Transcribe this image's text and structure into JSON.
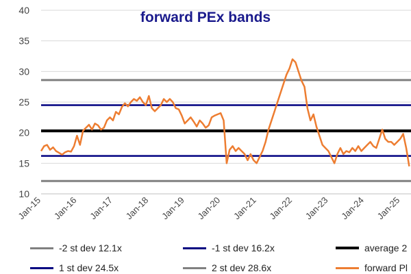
{
  "chart_data": {
    "type": "line",
    "title": "forward PEx bands",
    "xlabel": "",
    "ylabel": "",
    "ylim": [
      10,
      40
    ],
    "yticks": [
      "10",
      "15",
      "20",
      "25",
      "30",
      "35",
      "40"
    ],
    "xticks": [
      "Jan-15",
      "Jan-16",
      "Jan-17",
      "Jan-18",
      "Jan-19",
      "Jan-20",
      "Jan-21",
      "Jan-22",
      "Jan-23",
      "Jan-24",
      "Jan-25"
    ],
    "grid": true,
    "legend_position": "bottom",
    "bands": [
      {
        "name": "-2 st dev 12.1x",
        "value": 12.1,
        "color": "#808080",
        "width": 3
      },
      {
        "name": "-1 st dev 16.2x",
        "value": 16.2,
        "color": "#000080",
        "width": 2.5
      },
      {
        "name": "average 2",
        "value": 20.3,
        "color": "#000000",
        "width": 4
      },
      {
        "name": "1 st dev 24.5x",
        "value": 24.5,
        "color": "#000080",
        "width": 2.5
      },
      {
        "name": "2 st dev 28.6x",
        "value": 28.6,
        "color": "#808080",
        "width": 3
      }
    ],
    "series": [
      {
        "name": "forward Pl",
        "color": "#ed7d31",
        "points": [
          [
            "2015-01",
            17.0
          ],
          [
            "2015-02",
            17.8
          ],
          [
            "2015-03",
            18.0
          ],
          [
            "2015-04",
            17.2
          ],
          [
            "2015-05",
            17.6
          ],
          [
            "2015-06",
            17.0
          ],
          [
            "2015-07",
            16.7
          ],
          [
            "2015-08",
            16.4
          ],
          [
            "2015-09",
            16.8
          ],
          [
            "2015-10",
            17.0
          ],
          [
            "2015-11",
            16.9
          ],
          [
            "2015-12",
            17.8
          ],
          [
            "2016-01",
            19.5
          ],
          [
            "2016-02",
            18.0
          ],
          [
            "2016-03",
            20.3
          ],
          [
            "2016-04",
            20.8
          ],
          [
            "2016-05",
            21.3
          ],
          [
            "2016-06",
            20.5
          ],
          [
            "2016-07",
            21.5
          ],
          [
            "2016-08",
            21.2
          ],
          [
            "2016-09",
            20.5
          ],
          [
            "2016-10",
            20.8
          ],
          [
            "2016-11",
            22.0
          ],
          [
            "2016-12",
            22.5
          ],
          [
            "2017-01",
            22.0
          ],
          [
            "2017-02",
            23.4
          ],
          [
            "2017-03",
            23.0
          ],
          [
            "2017-04",
            24.2
          ],
          [
            "2017-05",
            24.8
          ],
          [
            "2017-06",
            24.3
          ],
          [
            "2017-07",
            25.0
          ],
          [
            "2017-08",
            25.5
          ],
          [
            "2017-09",
            25.2
          ],
          [
            "2017-10",
            25.8
          ],
          [
            "2017-11",
            25.0
          ],
          [
            "2017-12",
            24.5
          ],
          [
            "2018-01",
            26.0
          ],
          [
            "2018-02",
            24.0
          ],
          [
            "2018-03",
            23.5
          ],
          [
            "2018-04",
            24.0
          ],
          [
            "2018-05",
            24.5
          ],
          [
            "2018-06",
            25.5
          ],
          [
            "2018-07",
            25.0
          ],
          [
            "2018-08",
            25.5
          ],
          [
            "2018-09",
            25.0
          ],
          [
            "2018-10",
            24.0
          ],
          [
            "2018-11",
            23.8
          ],
          [
            "2018-12",
            22.8
          ],
          [
            "2019-01",
            21.5
          ],
          [
            "2019-02",
            22.0
          ],
          [
            "2019-03",
            22.5
          ],
          [
            "2019-04",
            21.8
          ],
          [
            "2019-05",
            21.0
          ],
          [
            "2019-06",
            22.0
          ],
          [
            "2019-07",
            21.5
          ],
          [
            "2019-08",
            20.8
          ],
          [
            "2019-09",
            21.2
          ],
          [
            "2019-10",
            22.5
          ],
          [
            "2019-11",
            22.8
          ],
          [
            "2019-12",
            23.0
          ],
          [
            "2020-01",
            23.2
          ],
          [
            "2020-02",
            22.0
          ],
          [
            "2020-03",
            15.0
          ],
          [
            "2020-04",
            17.2
          ],
          [
            "2020-05",
            17.8
          ],
          [
            "2020-06",
            17.0
          ],
          [
            "2020-07",
            17.5
          ],
          [
            "2020-08",
            17.0
          ],
          [
            "2020-09",
            16.5
          ],
          [
            "2020-10",
            15.5
          ],
          [
            "2020-11",
            16.5
          ],
          [
            "2020-12",
            15.5
          ],
          [
            "2021-01",
            15.0
          ],
          [
            "2021-02",
            16.0
          ],
          [
            "2021-03",
            17.0
          ],
          [
            "2021-04",
            18.5
          ],
          [
            "2021-05",
            20.5
          ],
          [
            "2021-06",
            22.0
          ],
          [
            "2021-07",
            23.5
          ],
          [
            "2021-08",
            25.0
          ],
          [
            "2021-09",
            26.5
          ],
          [
            "2021-10",
            28.0
          ],
          [
            "2021-11",
            29.5
          ],
          [
            "2021-12",
            30.5
          ],
          [
            "2022-01",
            32.0
          ],
          [
            "2022-02",
            31.5
          ],
          [
            "2022-03",
            30.0
          ],
          [
            "2022-04",
            28.5
          ],
          [
            "2022-05",
            27.5
          ],
          [
            "2022-06",
            24.0
          ],
          [
            "2022-07",
            22.0
          ],
          [
            "2022-08",
            23.0
          ],
          [
            "2022-09",
            21.0
          ],
          [
            "2022-10",
            19.5
          ],
          [
            "2022-11",
            18.0
          ],
          [
            "2022-12",
            17.5
          ],
          [
            "2023-01",
            17.0
          ],
          [
            "2023-02",
            16.0
          ],
          [
            "2023-03",
            15.0
          ],
          [
            "2023-04",
            16.5
          ],
          [
            "2023-05",
            17.5
          ],
          [
            "2023-06",
            16.5
          ],
          [
            "2023-07",
            17.0
          ],
          [
            "2023-08",
            16.8
          ],
          [
            "2023-09",
            17.5
          ],
          [
            "2023-10",
            17.0
          ],
          [
            "2023-11",
            17.8
          ],
          [
            "2023-12",
            17.0
          ],
          [
            "2024-01",
            17.5
          ],
          [
            "2024-02",
            18.0
          ],
          [
            "2024-03",
            18.5
          ],
          [
            "2024-04",
            17.8
          ],
          [
            "2024-05",
            17.5
          ],
          [
            "2024-06",
            19.0
          ],
          [
            "2024-07",
            20.5
          ],
          [
            "2024-08",
            19.0
          ],
          [
            "2024-09",
            18.5
          ],
          [
            "2024-10",
            18.5
          ],
          [
            "2024-11",
            18.0
          ],
          [
            "2024-12",
            18.5
          ],
          [
            "2025-01",
            19.0
          ],
          [
            "2025-02",
            19.8
          ],
          [
            "2025-03",
            17.5
          ],
          [
            "2025-04",
            14.5
          ]
        ]
      }
    ]
  }
}
